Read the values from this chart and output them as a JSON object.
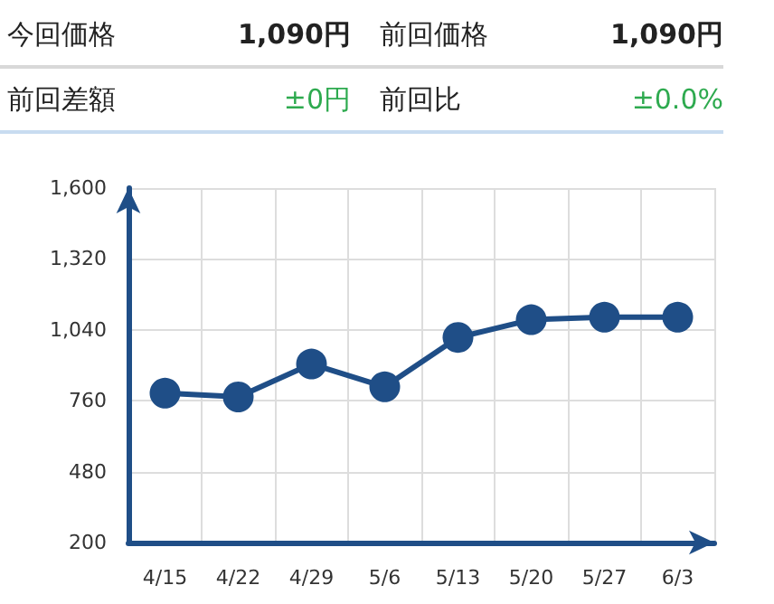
{
  "chart_data": {
    "type": "line",
    "annotations": [
      "今回価格",
      "1,090円",
      "前回価格",
      "1,090円",
      "前回差額",
      "±0円",
      "前回比",
      "±0.0%"
    ],
    "categories": [
      "4/15",
      "4/22",
      "4/29",
      "5/6",
      "5/13",
      "5/20",
      "5/27",
      "6/3"
    ],
    "series": [
      {
        "color": "#1f4e87",
        "values": [
          790,
          775,
          905,
          815,
          1010,
          1080,
          1090,
          1090
        ]
      }
    ],
    "ylim": [
      200,
      1600
    ],
    "yticks": [
      200,
      480,
      760,
      {
        "value": 1040,
        "label": "1,040"
      },
      {
        "value": 1320,
        "label": "1,320"
      },
      {
        "value": 1600,
        "label": "1,600"
      }
    ],
    "grid": true,
    "marker": "circle",
    "line_style": "solid"
  }
}
